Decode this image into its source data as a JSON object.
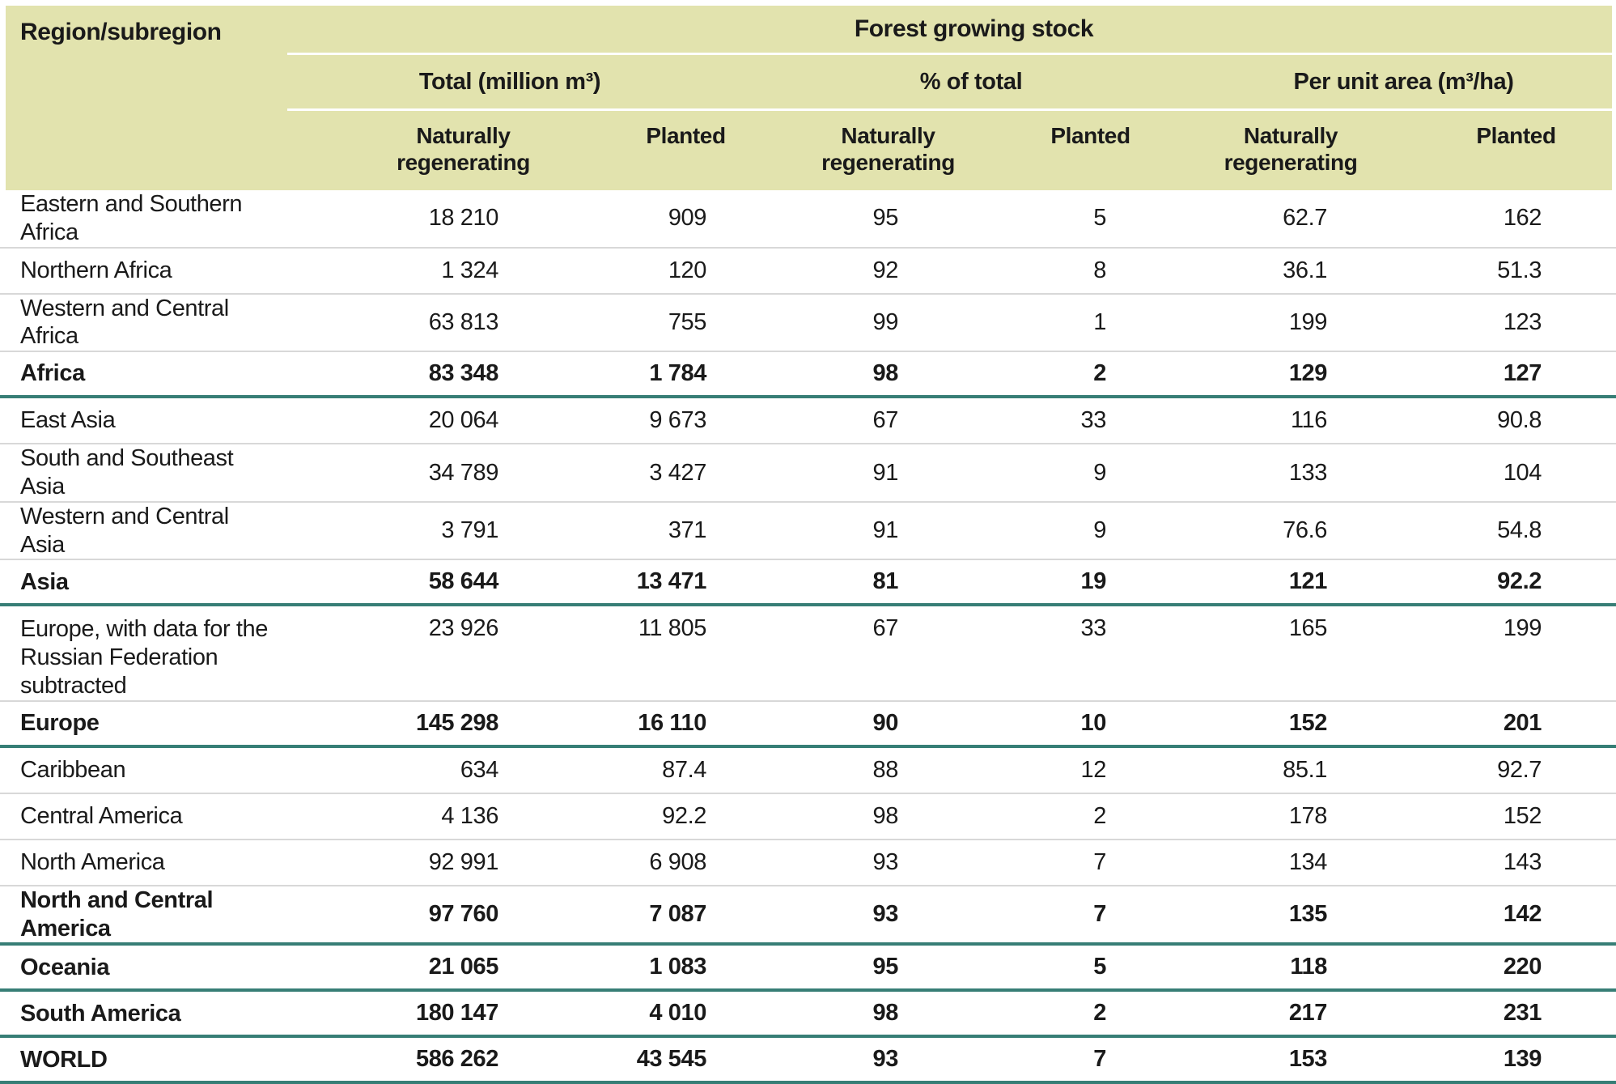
{
  "table": {
    "corner_label": "Region/subregion",
    "title": "Forest growing stock",
    "group_headers": [
      "Total (million m³)",
      "% of total",
      "Per unit area (m³/ha)"
    ],
    "sub_headers": [
      "Naturally regenerating",
      "Planted"
    ],
    "colors": {
      "header_bg": "#e2e3ae",
      "rule_teal": "#377e76",
      "row_divider": "#d8d8d8",
      "footer_strip": "#efe8d8",
      "text": "#1a1a1a"
    },
    "rows": [
      {
        "region": "Eastern and Southern Africa",
        "bold": false,
        "values": [
          "18 210",
          "909",
          "95",
          "5",
          "62.7",
          "162"
        ]
      },
      {
        "region": "Northern Africa",
        "bold": false,
        "values": [
          "1 324",
          "120",
          "92",
          "8",
          "36.1",
          "51.3"
        ]
      },
      {
        "region": "Western and Central Africa",
        "bold": false,
        "values": [
          "63 813",
          "755",
          "99",
          "1",
          "199",
          "123"
        ]
      },
      {
        "region": "Africa",
        "bold": true,
        "values": [
          "83 348",
          "1 784",
          "98",
          "2",
          "129",
          "127"
        ]
      },
      {
        "region": "East Asia",
        "bold": false,
        "values": [
          "20 064",
          "9 673",
          "67",
          "33",
          "116",
          "90.8"
        ]
      },
      {
        "region": "South and Southeast Asia",
        "bold": false,
        "values": [
          "34 789",
          "3 427",
          "91",
          "9",
          "133",
          "104"
        ]
      },
      {
        "region": "Western and Central Asia",
        "bold": false,
        "values": [
          "3 791",
          "371",
          "91",
          "9",
          "76.6",
          "54.8"
        ]
      },
      {
        "region": "Asia",
        "bold": true,
        "values": [
          "58 644",
          "13 471",
          "81",
          "19",
          "121",
          "92.2"
        ]
      },
      {
        "region": "Europe, with data for the Russian Federation subtracted",
        "bold": false,
        "tall": true,
        "values": [
          "23 926",
          "11 805",
          "67",
          "33",
          "165",
          "199"
        ]
      },
      {
        "region": "Europe",
        "bold": true,
        "values": [
          "145 298",
          "16 110",
          "90",
          "10",
          "152",
          "201"
        ]
      },
      {
        "region": "Caribbean",
        "bold": false,
        "values": [
          "634",
          "87.4",
          "88",
          "12",
          "85.1",
          "92.7"
        ]
      },
      {
        "region": "Central America",
        "bold": false,
        "values": [
          "4 136",
          "92.2",
          "98",
          "2",
          "178",
          "152"
        ]
      },
      {
        "region": "North America",
        "bold": false,
        "values": [
          "92 991",
          "6 908",
          "93",
          "7",
          "134",
          "143"
        ]
      },
      {
        "region": "North and Central America",
        "bold": true,
        "values": [
          "97 760",
          "7 087",
          "93",
          "7",
          "135",
          "142"
        ]
      },
      {
        "region": "Oceania",
        "bold": true,
        "values": [
          "21 065",
          "1 083",
          "95",
          "5",
          "118",
          "220"
        ]
      },
      {
        "region": "South America",
        "bold": true,
        "values": [
          "180 147",
          "4 010",
          "98",
          "2",
          "217",
          "231"
        ]
      },
      {
        "region": "WORLD",
        "bold": true,
        "values": [
          "586 262",
          "43 545",
          "93",
          "7",
          "153",
          "139"
        ]
      }
    ]
  }
}
